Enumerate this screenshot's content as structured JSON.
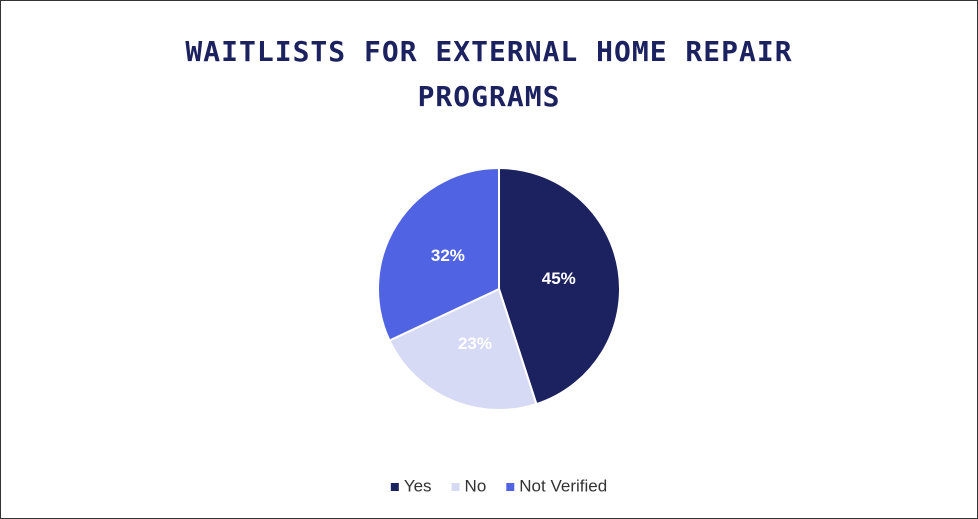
{
  "chart_data": {
    "type": "pie",
    "title": "WAITLISTS FOR EXTERNAL HOME REPAIR PROGRAMS",
    "categories": [
      "Yes",
      "No",
      "Not Verified"
    ],
    "values": [
      45,
      23,
      32
    ],
    "value_labels": [
      "45%",
      "23%",
      "32%"
    ],
    "colors": [
      "#1c2160",
      "#d6daf5",
      "#5064e3"
    ],
    "legend": "bottom"
  }
}
